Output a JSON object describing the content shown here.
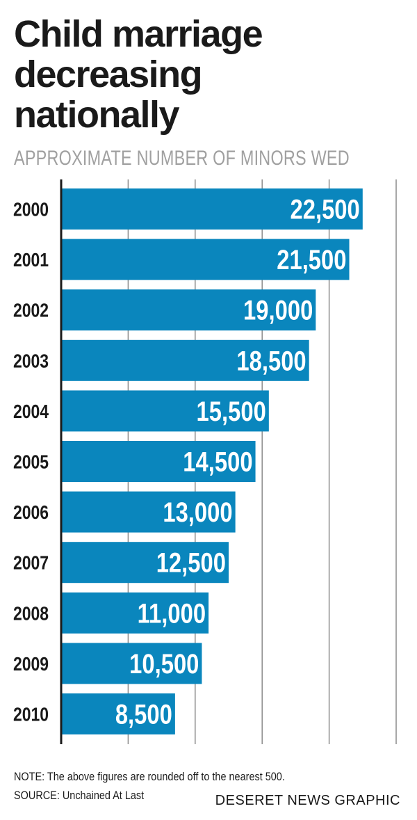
{
  "header": {
    "title": "Child marriage\ndecreasing\nnationally",
    "subtitle": "APPROXIMATE NUMBER OF MINORS  WED"
  },
  "footer": {
    "note": "NOTE: The above figures are rounded off to the nearest 500.",
    "source": "SOURCE: Unchained At Last",
    "credit": "DESERET NEWS GRAPHIC"
  },
  "colors": {
    "bar": "#0a86bd",
    "bar_label": "#ffffff",
    "gridline": "#8c8c8c",
    "axis": "#1a1a1a",
    "title": "#1a1a1a",
    "subtitle": "#a0a0a0"
  },
  "chart_data": {
    "type": "bar",
    "orientation": "horizontal",
    "title": "Child marriage decreasing nationally",
    "subtitle": "APPROXIMATE NUMBER OF MINORS  WED",
    "categories": [
      "2000",
      "2001",
      "2002",
      "2003",
      "2004",
      "2005",
      "2006",
      "2007",
      "2008",
      "2009",
      "2010"
    ],
    "values": [
      22500,
      21500,
      19000,
      18500,
      15500,
      14500,
      13000,
      12500,
      11000,
      10500,
      8500
    ],
    "value_labels": [
      "22,500",
      "21,500",
      "19,000",
      "18,500",
      "15,500",
      "14,500",
      "13,000",
      "12,500",
      "11,000",
      "10,500",
      "8,500"
    ],
    "xlim": [
      0,
      25000
    ],
    "gridlines_at": [
      5000,
      10000,
      15000,
      20000,
      25000
    ],
    "xlabel": "",
    "ylabel": "",
    "grid": true,
    "legend": "none"
  }
}
